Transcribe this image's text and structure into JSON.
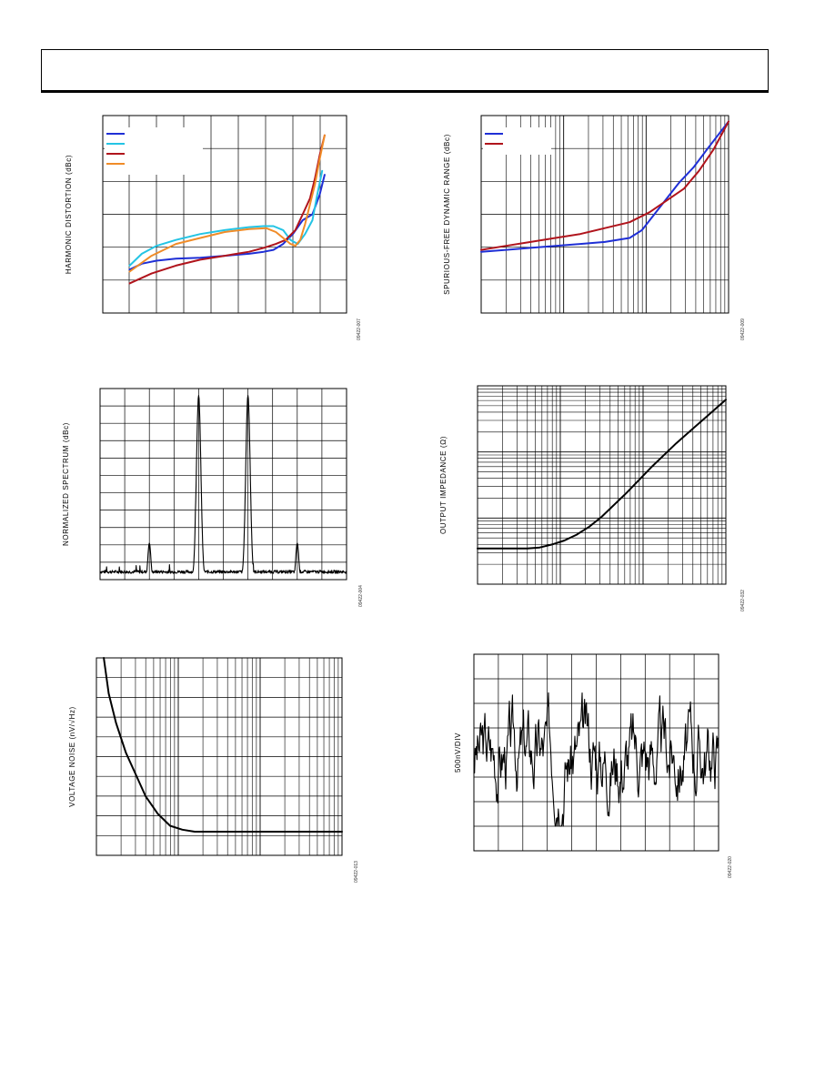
{
  "page": {
    "background": "#ffffff"
  },
  "chart_data": [
    {
      "id": "harmonic-distortion",
      "type": "line",
      "title": "",
      "xlabel": "",
      "ylabel": "HARMONIC DISTORTION (dBc)",
      "figure_id": "09422-007",
      "xlim": [
        0,
        1
      ],
      "ylim": [
        0,
        1
      ],
      "x_scale": "linear",
      "grid": true,
      "legend": "top-left",
      "series": [
        {
          "color": "#1f2fd6",
          "x": [
            0.11,
            0.16,
            0.22,
            0.3,
            0.4,
            0.5,
            0.6,
            0.66,
            0.7,
            0.74,
            0.78,
            0.82,
            0.86,
            0.89,
            0.91
          ],
          "y": [
            0.22,
            0.25,
            0.265,
            0.275,
            0.28,
            0.29,
            0.3,
            0.31,
            0.32,
            0.35,
            0.4,
            0.47,
            0.5,
            0.6,
            0.7
          ]
        },
        {
          "color": "#24c4e4",
          "x": [
            0.11,
            0.16,
            0.22,
            0.3,
            0.4,
            0.5,
            0.6,
            0.66,
            0.7,
            0.74,
            0.77,
            0.8,
            0.83,
            0.86,
            0.88,
            0.9
          ],
          "y": [
            0.24,
            0.3,
            0.34,
            0.37,
            0.4,
            0.42,
            0.435,
            0.44,
            0.44,
            0.42,
            0.37,
            0.35,
            0.4,
            0.47,
            0.6,
            0.72
          ]
        },
        {
          "color": "#b0141c",
          "x": [
            0.11,
            0.2,
            0.3,
            0.4,
            0.5,
            0.6,
            0.66,
            0.71,
            0.75,
            0.79,
            0.82,
            0.85,
            0.87,
            0.89,
            0.91
          ],
          "y": [
            0.15,
            0.2,
            0.24,
            0.27,
            0.29,
            0.31,
            0.33,
            0.35,
            0.37,
            0.42,
            0.5,
            0.58,
            0.68,
            0.8,
            0.9
          ]
        },
        {
          "color": "#f08c28",
          "x": [
            0.11,
            0.2,
            0.3,
            0.4,
            0.5,
            0.6,
            0.67,
            0.71,
            0.74,
            0.77,
            0.79,
            0.81,
            0.83,
            0.85,
            0.87,
            0.89,
            0.91
          ],
          "y": [
            0.21,
            0.29,
            0.35,
            0.38,
            0.41,
            0.425,
            0.43,
            0.41,
            0.38,
            0.35,
            0.34,
            0.37,
            0.45,
            0.55,
            0.65,
            0.78,
            0.9
          ]
        }
      ]
    },
    {
      "id": "sfdr",
      "type": "line",
      "title": "",
      "xlabel": "",
      "ylabel": "SPURIOUS-FREE DYNAMIC RANGE (dBc)",
      "figure_id": "09422-009",
      "xlim": [
        0,
        1
      ],
      "ylim": [
        0,
        1
      ],
      "x_scale": "log",
      "grid": true,
      "legend": "top-left",
      "series": [
        {
          "color": "#1f2fd6",
          "x": [
            0,
            0.1,
            0.2,
            0.3,
            0.4,
            0.5,
            0.6,
            0.65,
            0.7,
            0.75,
            0.8,
            0.86,
            0.92,
            1.0
          ],
          "y": [
            0.31,
            0.32,
            0.33,
            0.34,
            0.35,
            0.36,
            0.38,
            0.42,
            0.5,
            0.58,
            0.66,
            0.74,
            0.84,
            0.97
          ]
        },
        {
          "color": "#b0141c",
          "x": [
            0,
            0.1,
            0.2,
            0.3,
            0.4,
            0.5,
            0.6,
            0.68,
            0.75,
            0.82,
            0.88,
            0.94,
            1.0
          ],
          "y": [
            0.32,
            0.34,
            0.36,
            0.38,
            0.4,
            0.43,
            0.46,
            0.51,
            0.57,
            0.63,
            0.72,
            0.83,
            0.97
          ]
        }
      ]
    },
    {
      "id": "normalized-spectrum",
      "type": "line",
      "title": "",
      "xlabel": "",
      "ylabel": "NORMALIZED SPECTRUM (dBc)",
      "figure_id": "09422-004",
      "xlim": [
        0,
        10
      ],
      "ylim": [
        0,
        11
      ],
      "grid": true,
      "series": [
        {
          "color": "#000000",
          "noise_floor": 0.45,
          "peaks": [
            {
              "x": 2.0,
              "height": 2.1,
              "width": 0.06
            },
            {
              "x": 4.0,
              "height": 10.6,
              "width": 0.09
            },
            {
              "x": 6.0,
              "height": 10.6,
              "width": 0.09
            },
            {
              "x": 8.0,
              "height": 2.1,
              "width": 0.06
            }
          ]
        }
      ]
    },
    {
      "id": "output-impedance",
      "type": "line",
      "title": "",
      "xlabel": "",
      "ylabel": "OUTPUT IMPEDANCE (Ω)",
      "figure_id": "09422-032",
      "xlim": [
        0,
        1
      ],
      "ylim": [
        0,
        1
      ],
      "x_scale": "log",
      "y_scale": "log",
      "grid": true,
      "series": [
        {
          "color": "#000000",
          "x": [
            0,
            0.1,
            0.2,
            0.25,
            0.3,
            0.35,
            0.4,
            0.45,
            0.5,
            0.6,
            0.7,
            0.8,
            0.9,
            1.0
          ],
          "y": [
            0.18,
            0.18,
            0.18,
            0.185,
            0.2,
            0.22,
            0.25,
            0.29,
            0.34,
            0.46,
            0.59,
            0.71,
            0.82,
            0.93
          ]
        }
      ]
    },
    {
      "id": "voltage-noise",
      "type": "line",
      "title": "",
      "xlabel": "",
      "ylabel": "VOLTAGE NOISE (nV/√Hz)",
      "figure_id": "09422-013",
      "xlim": [
        0,
        1
      ],
      "ylim": [
        0,
        1
      ],
      "x_scale": "log",
      "grid": true,
      "series": [
        {
          "color": "#000000",
          "x": [
            0.03,
            0.05,
            0.08,
            0.12,
            0.16,
            0.2,
            0.25,
            0.3,
            0.35,
            0.4,
            0.5,
            0.6,
            0.8,
            1.0
          ],
          "y": [
            1.0,
            0.82,
            0.67,
            0.52,
            0.41,
            0.3,
            0.21,
            0.15,
            0.13,
            0.12,
            0.12,
            0.12,
            0.12,
            0.12
          ]
        }
      ]
    },
    {
      "id": "voltage-noise-time",
      "type": "line",
      "title": "",
      "xlabel": "",
      "ylabel": "500nV/DIV",
      "figure_id": "09422-020",
      "xlim": [
        0,
        10
      ],
      "ylim": [
        0,
        8
      ],
      "grid": true,
      "series": [
        {
          "color": "#000000",
          "center": 4.0,
          "amplitude": 1.5
        }
      ]
    }
  ]
}
